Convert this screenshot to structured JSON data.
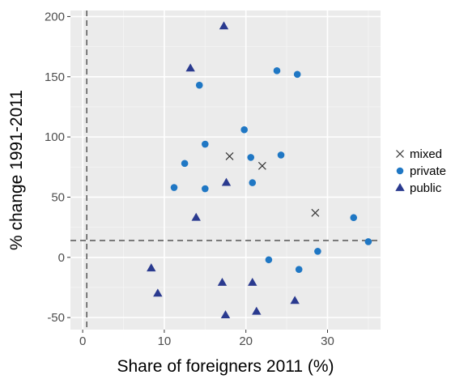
{
  "chart_data": {
    "type": "scatter",
    "xlabel": "Share of foreigners 2011 (%)",
    "ylabel": "% change 1991-2011",
    "xlim": [
      -1.5,
      36.5
    ],
    "ylim": [
      -60,
      205
    ],
    "x_ticks": [
      0,
      10,
      20,
      30
    ],
    "y_ticks": [
      -50,
      0,
      50,
      100,
      150,
      200
    ],
    "grid": true,
    "background": "#ebebeb",
    "legend_position": "right",
    "reference_lines": {
      "vertical_x": 0.5,
      "horizontal_y": 14
    },
    "series": [
      {
        "name": "mixed",
        "marker": "x",
        "color": "#333333",
        "points": [
          [
            18.0,
            84
          ],
          [
            22.0,
            76
          ],
          [
            28.5,
            37
          ]
        ]
      },
      {
        "name": "private",
        "marker": "circle",
        "color": "#1f77c4",
        "points": [
          [
            11.2,
            58
          ],
          [
            12.5,
            78
          ],
          [
            14.3,
            143
          ],
          [
            15.0,
            94
          ],
          [
            15.0,
            57
          ],
          [
            19.8,
            106
          ],
          [
            20.6,
            83
          ],
          [
            20.8,
            62
          ],
          [
            23.8,
            155
          ],
          [
            24.3,
            85
          ],
          [
            26.3,
            152
          ],
          [
            22.8,
            -2
          ],
          [
            26.5,
            -10
          ],
          [
            28.8,
            5
          ],
          [
            33.2,
            33
          ],
          [
            35.0,
            13
          ]
        ]
      },
      {
        "name": "public",
        "marker": "triangle",
        "color": "#2a3a8f",
        "points": [
          [
            17.3,
            192
          ],
          [
            13.2,
            157
          ],
          [
            17.6,
            62
          ],
          [
            13.9,
            33
          ],
          [
            8.4,
            -9
          ],
          [
            9.2,
            -30
          ],
          [
            17.1,
            -21
          ],
          [
            20.8,
            -21
          ],
          [
            17.5,
            -48
          ],
          [
            21.3,
            -45
          ],
          [
            26.0,
            -36
          ]
        ]
      }
    ]
  }
}
